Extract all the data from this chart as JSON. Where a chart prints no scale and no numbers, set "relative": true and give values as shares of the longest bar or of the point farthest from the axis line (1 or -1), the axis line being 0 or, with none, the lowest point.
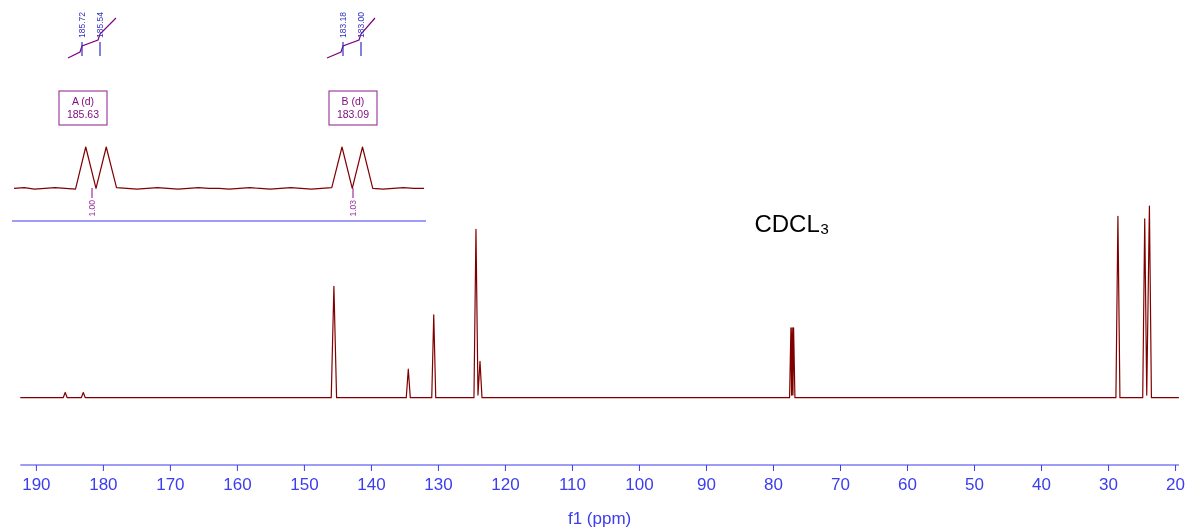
{
  "chart_data": [
    {
      "type": "line",
      "relative": true,
      "xlabel": "f1 (ppm)",
      "xlim": [
        192.4,
        19.5
      ],
      "xticks": [
        190,
        180,
        170,
        160,
        150,
        140,
        130,
        120,
        110,
        100,
        90,
        80,
        70,
        60,
        50,
        40,
        30,
        20
      ],
      "line_style": "solid",
      "series": [
        {
          "color": "#800000",
          "x": [
            192.4,
            186.0,
            185.7,
            185.4,
            183.3,
            183.0,
            182.7,
            146.0,
            145.6,
            145.2,
            134.8,
            134.5,
            134.2,
            131.0,
            130.7,
            130.4,
            124.7,
            124.4,
            124.1,
            123.8,
            123.5,
            77.6,
            77.4,
            77.3,
            77.2,
            77.1,
            77.0,
            76.8,
            28.9,
            28.6,
            28.3,
            24.9,
            24.6,
            24.3,
            23.9,
            23.6,
            19.5
          ],
          "values": [
            0.26,
            0.26,
            0.28,
            0.26,
            0.26,
            0.28,
            0.26,
            0.26,
            0.69,
            0.26,
            0.26,
            0.37,
            0.26,
            0.26,
            0.58,
            0.26,
            0.26,
            0.91,
            0.27,
            0.4,
            0.26,
            0.26,
            0.53,
            0.27,
            0.53,
            0.27,
            0.53,
            0.26,
            0.26,
            0.96,
            0.26,
            0.26,
            0.95,
            0.27,
            1,
            0.26,
            0.26
          ]
        }
      ],
      "annotations": [
        "CDCL₃"
      ]
    },
    {
      "type": "line",
      "relative": true,
      "line_style": "solid",
      "categories": [
        null,
        null,
        null,
        null,
        null,
        null,
        null,
        null,
        null,
        null,
        null,
        null,
        null,
        null,
        null,
        null,
        null,
        null,
        null,
        null,
        null,
        null,
        null,
        null,
        null,
        null,
        null,
        null,
        null,
        null,
        null,
        null,
        null,
        null,
        null,
        null,
        null,
        null,
        null,
        null,
        null
      ],
      "series": [
        {
          "color": "#800000",
          "values": [
            0.44,
            0.45,
            0.43,
            0.44,
            0.45,
            0.44,
            0.43,
            1,
            0.44,
            1,
            0.45,
            0.44,
            0.43,
            0.44,
            0.45,
            0.44,
            0.43,
            0.44,
            0.45,
            0.44,
            0.44,
            0.43,
            0.44,
            0.45,
            0.44,
            0.43,
            0.44,
            0.45,
            0.44,
            0.43,
            0.44,
            0.45,
            1,
            0.44,
            1,
            0.44,
            0.43,
            0.44,
            0.45,
            0.44,
            0.44
          ]
        }
      ],
      "annotations": [
        "185.72",
        "185.54",
        "183.18",
        "183.00",
        "A (d)\n185.63",
        "B (d)\n183.09",
        "1.00",
        "1.03"
      ]
    }
  ]
}
